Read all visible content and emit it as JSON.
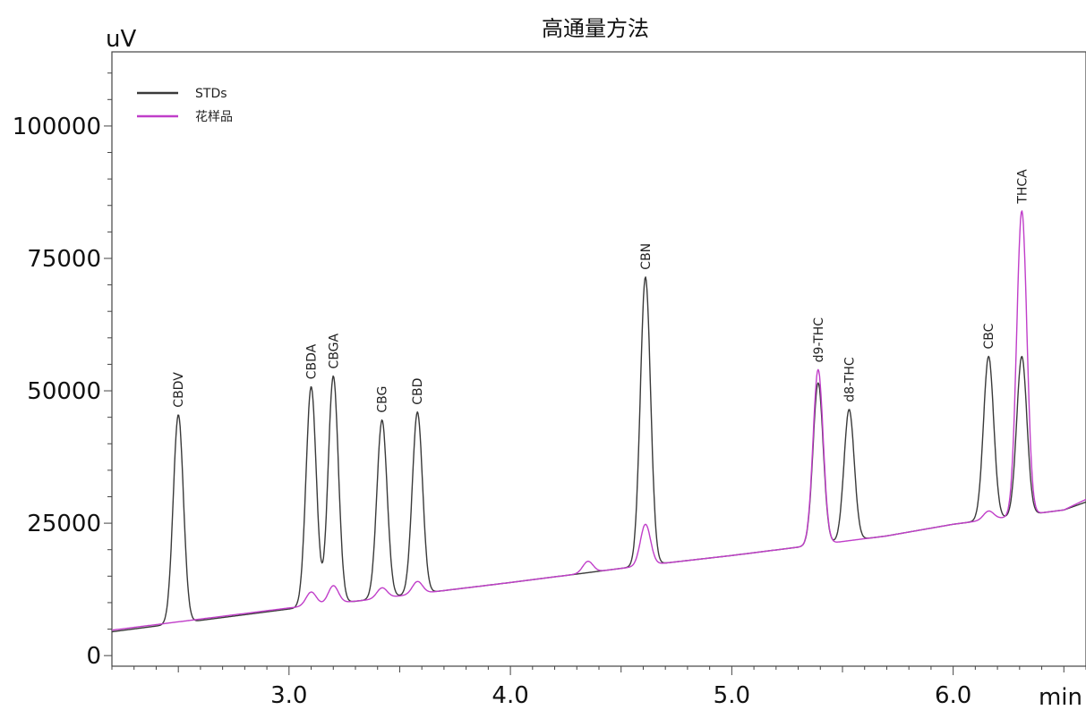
{
  "chart_data": {
    "type": "line",
    "title": "高通量方法",
    "xlabel": "min",
    "ylabel": "uV",
    "xlim": [
      2.2,
      6.6
    ],
    "ylim": [
      -2000,
      114000
    ],
    "x_ticks": [
      3.0,
      4.0,
      5.0,
      6.0
    ],
    "x_tick_labels": [
      "3.0",
      "4.0",
      "5.0",
      "6.0"
    ],
    "y_ticks": [
      0,
      25000,
      50000,
      75000,
      100000
    ],
    "y_tick_labels": [
      "0",
      "25000",
      "50000",
      "75000",
      "100000"
    ],
    "grid": false,
    "legend_position": "top-left",
    "series_colors": [
      "#3a3a3a",
      "#c03ec9"
    ],
    "series": [
      {
        "name": "STDs",
        "baseline": [
          [
            2.2,
            4500
          ],
          [
            3.0,
            8800
          ],
          [
            3.35,
            10500
          ],
          [
            4.0,
            13800
          ],
          [
            4.6,
            17000
          ],
          [
            5.0,
            18900
          ],
          [
            5.4,
            21000
          ],
          [
            5.7,
            22600
          ],
          [
            6.0,
            24800
          ],
          [
            6.5,
            27500
          ],
          [
            6.6,
            29000
          ]
        ],
        "peaks": [
          {
            "label": "CBDV",
            "x": 2.5,
            "y": 45500
          },
          {
            "label": "CBDA",
            "x": 3.1,
            "y": 50800
          },
          {
            "label": "CBGA",
            "x": 3.2,
            "y": 52800
          },
          {
            "label": "CBG",
            "x": 3.42,
            "y": 44500
          },
          {
            "label": "CBD",
            "x": 3.58,
            "y": 46000
          },
          {
            "label": "CBN",
            "x": 4.61,
            "y": 71500
          },
          {
            "label": "d9-THC",
            "x": 5.39,
            "y": 51500
          },
          {
            "label": "d8-THC",
            "x": 5.53,
            "y": 46500
          },
          {
            "label": "CBC",
            "x": 6.16,
            "y": 56500
          },
          {
            "label": "THCA",
            "x": 6.31,
            "y": 56500
          }
        ]
      },
      {
        "name": "花样品",
        "baseline": [
          [
            2.2,
            4800
          ],
          [
            3.0,
            9000
          ],
          [
            3.35,
            10500
          ],
          [
            4.0,
            13800
          ],
          [
            4.6,
            17000
          ],
          [
            5.0,
            18900
          ],
          [
            5.4,
            21000
          ],
          [
            5.7,
            22600
          ],
          [
            6.0,
            24800
          ],
          [
            6.5,
            27500
          ],
          [
            6.6,
            29500
          ]
        ],
        "peaks": [
          {
            "x": 3.1,
            "y": 12000
          },
          {
            "x": 3.2,
            "y": 13200
          },
          {
            "x": 3.42,
            "y": 12800
          },
          {
            "x": 3.58,
            "y": 14000
          },
          {
            "x": 4.35,
            "y": 17800
          },
          {
            "x": 4.61,
            "y": 24800
          },
          {
            "x": 5.39,
            "y": 54000
          },
          {
            "x": 6.16,
            "y": 27300
          },
          {
            "x": 6.31,
            "y": 84000
          }
        ]
      }
    ]
  }
}
